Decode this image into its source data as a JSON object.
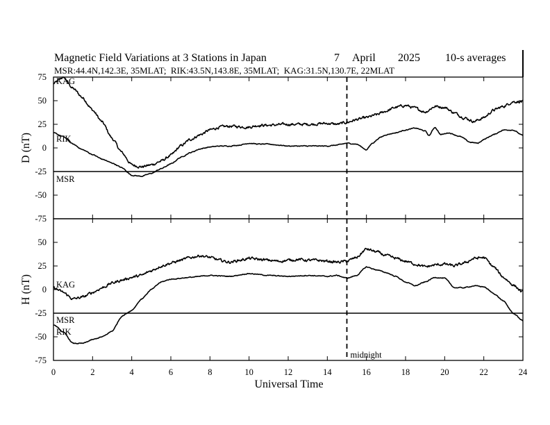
{
  "chart_data": {
    "type": "line",
    "title": "Magnetic Field Variations at 3 Stations in Japan",
    "date_day": "7",
    "date_month": "April",
    "date_year": "2025",
    "averaging": "10-s averages",
    "stations_info": "MSR:44.4N,142.3E, 35MLAT;  RIK:43.5N,143.8E, 35MLAT;  KAG:31.5N,130.7E, 22MLAT",
    "xlabel": "Universal Time",
    "xlim": [
      0,
      24
    ],
    "x_ticks": [
      0,
      2,
      4,
      6,
      8,
      10,
      12,
      14,
      16,
      18,
      20,
      22,
      24
    ],
    "midnight_x": 15,
    "midnight_label": "midnight",
    "colors": {
      "line": "#000000",
      "background": "#ffffff"
    },
    "panels": [
      {
        "component": "D",
        "ylabel": "D (nT)",
        "ylim": [
          -75,
          75
        ],
        "y_ticks": [
          75,
          50,
          25,
          0,
          -25,
          -50,
          -75
        ],
        "series": [
          {
            "name": "KAG",
            "noise": 2.2,
            "points": [
              [
                0,
                68
              ],
              [
                0.5,
                75
              ],
              [
                1,
                63
              ],
              [
                1.5,
                53
              ],
              [
                2,
                40
              ],
              [
                2.5,
                27
              ],
              [
                3,
                10
              ],
              [
                3.5,
                -5
              ],
              [
                4,
                -18
              ],
              [
                4.5,
                -20
              ],
              [
                5,
                -18
              ],
              [
                5.5,
                -14
              ],
              [
                6,
                -8
              ],
              [
                6.5,
                2
              ],
              [
                7,
                9
              ],
              [
                7.5,
                14
              ],
              [
                8,
                19
              ],
              [
                8.5,
                22
              ],
              [
                9,
                23
              ],
              [
                10,
                22
              ],
              [
                10.5,
                24
              ],
              [
                11,
                24
              ],
              [
                12,
                25
              ],
              [
                13,
                25
              ],
              [
                14,
                26
              ],
              [
                14.5,
                25
              ],
              [
                15,
                27
              ],
              [
                15.5,
                30
              ],
              [
                16,
                32
              ],
              [
                16.5,
                35
              ],
              [
                17,
                39
              ],
              [
                17.5,
                43
              ],
              [
                18,
                45
              ],
              [
                18.5,
                42
              ],
              [
                19,
                38
              ],
              [
                19.5,
                44
              ],
              [
                20,
                43
              ],
              [
                20.5,
                37
              ],
              [
                21,
                32
              ],
              [
                21.5,
                28
              ],
              [
                22,
                32
              ],
              [
                22.5,
                40
              ],
              [
                23,
                44
              ],
              [
                23.5,
                49
              ],
              [
                24,
                49
              ]
            ]
          },
          {
            "name": "RIK",
            "noise": 0.7,
            "points": [
              [
                0,
                16
              ],
              [
                0.5,
                12
              ],
              [
                1,
                4
              ],
              [
                1.5,
                -2
              ],
              [
                2,
                -7
              ],
              [
                2.5,
                -12
              ],
              [
                3,
                -16
              ],
              [
                3.5,
                -21
              ],
              [
                4,
                -29
              ],
              [
                4.5,
                -30
              ],
              [
                5,
                -27
              ],
              [
                5.5,
                -22
              ],
              [
                6,
                -17
              ],
              [
                6.5,
                -10
              ],
              [
                7,
                -5
              ],
              [
                7.5,
                -1
              ],
              [
                8,
                1
              ],
              [
                8.5,
                2
              ],
              [
                9,
                2
              ],
              [
                9.5,
                3
              ],
              [
                10,
                5
              ],
              [
                10.5,
                4
              ],
              [
                11,
                4
              ],
              [
                11.5,
                3
              ],
              [
                12,
                2
              ],
              [
                12.5,
                2
              ],
              [
                13,
                2
              ],
              [
                13.5,
                2
              ],
              [
                14,
                2
              ],
              [
                14.5,
                3
              ],
              [
                15,
                5
              ],
              [
                15.5,
                4
              ],
              [
                16,
                -2
              ],
              [
                16.3,
                5
              ],
              [
                16.7,
                11
              ],
              [
                17,
                14
              ],
              [
                17.5,
                16
              ],
              [
                18,
                19
              ],
              [
                18.5,
                21
              ],
              [
                19,
                18
              ],
              [
                19.2,
                13
              ],
              [
                19.5,
                22
              ],
              [
                19.8,
                14
              ],
              [
                20.2,
                16
              ],
              [
                20.8,
                12
              ],
              [
                21.3,
                6
              ],
              [
                21.7,
                5
              ],
              [
                22,
                9
              ],
              [
                22.5,
                14
              ],
              [
                23,
                19
              ],
              [
                23.5,
                19
              ],
              [
                24,
                13
              ]
            ]
          },
          {
            "name": "MSR",
            "noise": 0,
            "points": [
              [
                0,
                -25
              ],
              [
                24,
                -25
              ]
            ]
          }
        ]
      },
      {
        "component": "H",
        "ylabel": "H (nT)",
        "ylim": [
          -75,
          75
        ],
        "y_ticks": [
          50,
          25,
          0,
          -25,
          -50,
          -75
        ],
        "series": [
          {
            "name": "KAG",
            "noise": 2.2,
            "points": [
              [
                0,
                2
              ],
              [
                0.5,
                -3
              ],
              [
                1,
                -10
              ],
              [
                1.5,
                -8
              ],
              [
                2,
                -3
              ],
              [
                2.5,
                2
              ],
              [
                3,
                7
              ],
              [
                3.5,
                10
              ],
              [
                4,
                13
              ],
              [
                4.5,
                15
              ],
              [
                5,
                20
              ],
              [
                5.5,
                25
              ],
              [
                6,
                28
              ],
              [
                6.5,
                31
              ],
              [
                7,
                34
              ],
              [
                7.5,
                36
              ],
              [
                8,
                34
              ],
              [
                8.5,
                31
              ],
              [
                9,
                29
              ],
              [
                9.5,
                31
              ],
              [
                10,
                33
              ],
              [
                10.5,
                32
              ],
              [
                11,
                31
              ],
              [
                11.5,
                30
              ],
              [
                12,
                31
              ],
              [
                12.5,
                32
              ],
              [
                13,
                31
              ],
              [
                13.5,
                31
              ],
              [
                14,
                30
              ],
              [
                14.5,
                29
              ],
              [
                15,
                30
              ],
              [
                15.5,
                34
              ],
              [
                16,
                43
              ],
              [
                16.5,
                40
              ],
              [
                17,
                36
              ],
              [
                17.5,
                33
              ],
              [
                18,
                30
              ],
              [
                18.5,
                27
              ],
              [
                19,
                24
              ],
              [
                19.5,
                26
              ],
              [
                20,
                27
              ],
              [
                20.5,
                25
              ],
              [
                21,
                28
              ],
              [
                21.5,
                33
              ],
              [
                22,
                34
              ],
              [
                22.5,
                24
              ],
              [
                23,
                13
              ],
              [
                23.5,
                5
              ],
              [
                24,
                -3
              ]
            ]
          },
          {
            "name": "RIK",
            "noise": 0.7,
            "points": [
              [
                0,
                -37
              ],
              [
                0.5,
                -45
              ],
              [
                1,
                -57
              ],
              [
                1.5,
                -57
              ],
              [
                2,
                -53
              ],
              [
                2.5,
                -50
              ],
              [
                3,
                -44
              ],
              [
                3.5,
                -28
              ],
              [
                4,
                -22
              ],
              [
                4.5,
                -10
              ],
              [
                5,
                0
              ],
              [
                5.5,
                8
              ],
              [
                6,
                11
              ],
              [
                7,
                13
              ],
              [
                8,
                15
              ],
              [
                9,
                14
              ],
              [
                10,
                17
              ],
              [
                11,
                15
              ],
              [
                12,
                14
              ],
              [
                13,
                15
              ],
              [
                14,
                14
              ],
              [
                14.5,
                15
              ],
              [
                15,
                12
              ],
              [
                15.5,
                15
              ],
              [
                16,
                24
              ],
              [
                16.5,
                21
              ],
              [
                17,
                18
              ],
              [
                17.5,
                14
              ],
              [
                18,
                8
              ],
              [
                18.5,
                4
              ],
              [
                19,
                8
              ],
              [
                19.5,
                13
              ],
              [
                20,
                12
              ],
              [
                20.5,
                2
              ],
              [
                21,
                2
              ],
              [
                21.5,
                4
              ],
              [
                22,
                3
              ],
              [
                22.5,
                -4
              ],
              [
                23,
                -12
              ],
              [
                23.5,
                -25
              ],
              [
                24,
                -33
              ]
            ]
          },
          {
            "name": "MSR",
            "noise": 0,
            "points": [
              [
                0,
                -25
              ],
              [
                24,
                -25
              ]
            ]
          }
        ]
      }
    ]
  }
}
